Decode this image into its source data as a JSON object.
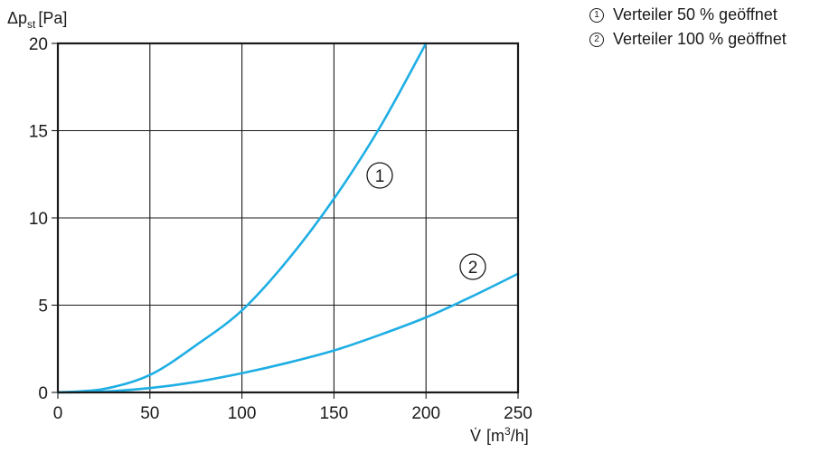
{
  "chart_data": {
    "type": "line",
    "ylabel": {
      "symbol": "Δp",
      "subscript": "st",
      "unit": "[Pa]"
    },
    "xlabel": {
      "symbol": "V̇",
      "unit_pre": "[m",
      "unit_sup": "3",
      "unit_post": "/h]"
    },
    "xlim": [
      0,
      250
    ],
    "ylim": [
      0,
      20
    ],
    "xticks": [
      "0",
      "50",
      "100",
      "150",
      "200",
      "250"
    ],
    "yticks": [
      "0",
      "5",
      "10",
      "15",
      "20"
    ],
    "grid": true,
    "curve_color": "#1eaee4",
    "series": [
      {
        "name": "Verteiler 50 % geöffnet",
        "marker": "1",
        "x": [
          0,
          25,
          50,
          75,
          100,
          125,
          150,
          175,
          200
        ],
        "y": [
          0,
          0.2,
          1.0,
          2.7,
          4.7,
          7.6,
          11.1,
          15.2,
          20.0
        ]
      },
      {
        "name": "Verteiler 100 % geöffnet",
        "marker": "2",
        "x": [
          0,
          25,
          50,
          75,
          100,
          125,
          150,
          175,
          200,
          225,
          250
        ],
        "y": [
          0,
          0.05,
          0.25,
          0.6,
          1.1,
          1.7,
          2.4,
          3.3,
          4.3,
          5.5,
          6.8
        ]
      }
    ]
  },
  "legend": {
    "items": [
      {
        "num": "①",
        "label": "Verteiler 50 % geöffnet"
      },
      {
        "num": "②",
        "label": "Verteiler 100 % geöffnet"
      }
    ]
  }
}
